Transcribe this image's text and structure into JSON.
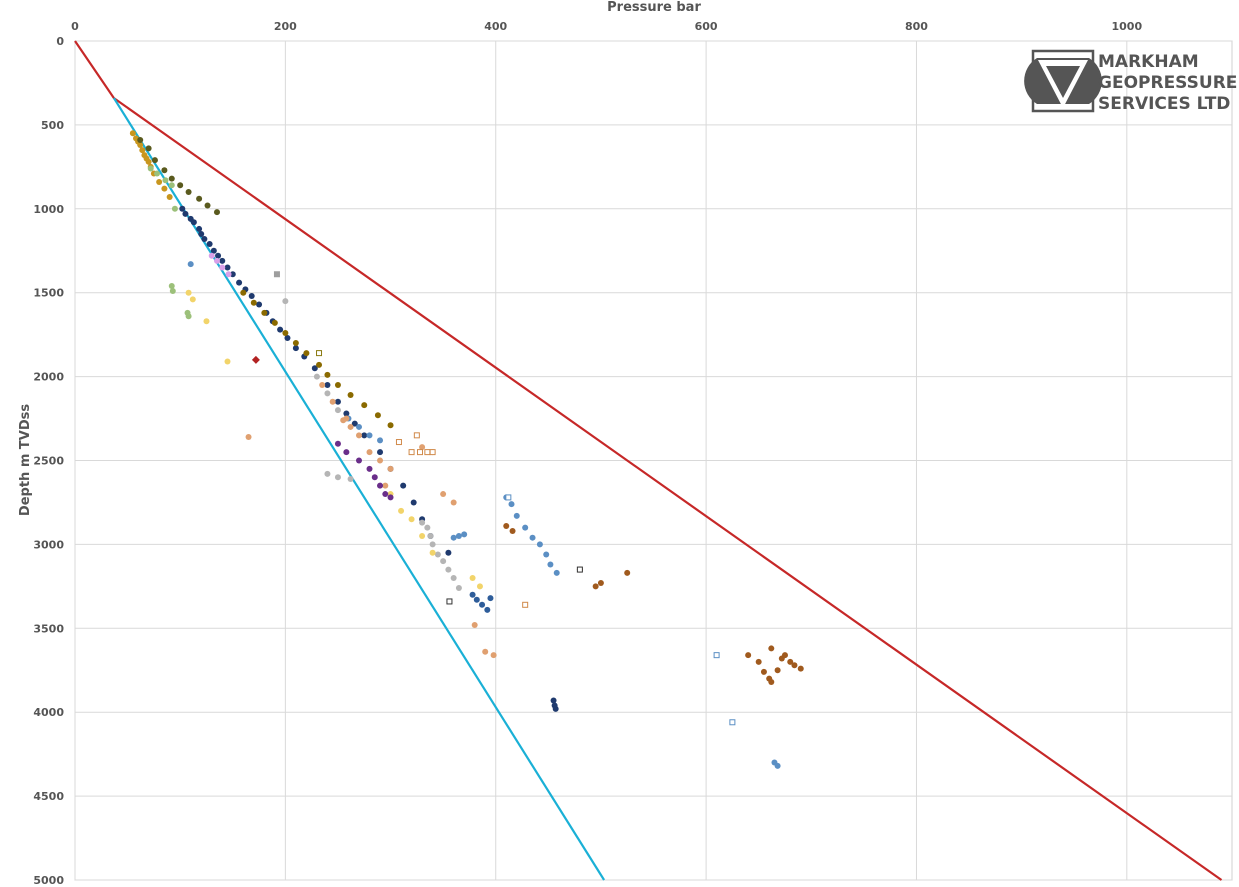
{
  "chart_data": {
    "type": "scatter",
    "title": "",
    "xlabel": "Pressure bar",
    "ylabel": "Depth m TVDss",
    "xlim": [
      0,
      1100
    ],
    "ylim": [
      5000,
      0
    ],
    "x_axis_position": "top",
    "y_axis_inverted": true,
    "x_ticks": [
      "0",
      "200",
      "400",
      "600",
      "800",
      "1000"
    ],
    "y_ticks": [
      "0",
      "500",
      "1000",
      "1500",
      "2000",
      "2500",
      "3000",
      "3500",
      "4000",
      "4500",
      "5000"
    ],
    "grid": true,
    "legend": "none",
    "lines": [
      {
        "color": "#c62828",
        "points": [
          [
            0,
            0
          ],
          [
            37,
            340
          ],
          [
            1090,
            5000
          ]
        ]
      },
      {
        "color": "#1ab0d6",
        "points": [
          [
            37,
            340
          ],
          [
            503,
            5000
          ]
        ]
      }
    ],
    "series": [
      {
        "color": "#c8961e",
        "marker": "circle",
        "points": [
          [
            55,
            550
          ],
          [
            58,
            580
          ],
          [
            60,
            600
          ],
          [
            62,
            620
          ],
          [
            64,
            650
          ],
          [
            66,
            680
          ],
          [
            68,
            700
          ],
          [
            70,
            720
          ],
          [
            72,
            750
          ],
          [
            75,
            790
          ],
          [
            80,
            840
          ],
          [
            85,
            880
          ],
          [
            90,
            930
          ]
        ]
      },
      {
        "color": "#9cc07a",
        "marker": "circle",
        "points": [
          [
            72,
            760
          ],
          [
            78,
            790
          ],
          [
            86,
            830
          ],
          [
            92,
            860
          ],
          [
            95,
            1000
          ],
          [
            92,
            1460
          ],
          [
            93,
            1490
          ],
          [
            107,
            1620
          ],
          [
            108,
            1640
          ]
        ]
      },
      {
        "color": "#5a5a1e",
        "marker": "circle",
        "points": [
          [
            62,
            590
          ],
          [
            70,
            640
          ],
          [
            76,
            710
          ],
          [
            85,
            770
          ],
          [
            92,
            820
          ],
          [
            100,
            860
          ],
          [
            108,
            900
          ],
          [
            118,
            940
          ],
          [
            126,
            980
          ],
          [
            135,
            1020
          ]
        ]
      },
      {
        "color": "#1f3a6e",
        "marker": "circle",
        "points": [
          [
            102,
            1000
          ],
          [
            105,
            1030
          ],
          [
            110,
            1060
          ],
          [
            113,
            1080
          ],
          [
            118,
            1120
          ],
          [
            120,
            1150
          ],
          [
            123,
            1180
          ],
          [
            128,
            1210
          ],
          [
            132,
            1250
          ],
          [
            136,
            1280
          ],
          [
            140,
            1310
          ],
          [
            145,
            1350
          ],
          [
            150,
            1390
          ],
          [
            156,
            1440
          ],
          [
            162,
            1480
          ],
          [
            168,
            1520
          ],
          [
            175,
            1570
          ],
          [
            182,
            1620
          ],
          [
            188,
            1670
          ],
          [
            195,
            1720
          ],
          [
            202,
            1770
          ],
          [
            210,
            1830
          ],
          [
            218,
            1880
          ],
          [
            228,
            1950
          ],
          [
            240,
            2050
          ],
          [
            250,
            2150
          ],
          [
            258,
            2220
          ],
          [
            266,
            2280
          ],
          [
            275,
            2350
          ],
          [
            290,
            2450
          ],
          [
            300,
            2550
          ],
          [
            312,
            2650
          ],
          [
            322,
            2750
          ],
          [
            330,
            2850
          ],
          [
            338,
            2950
          ],
          [
            355,
            3050
          ],
          [
            455,
            3930
          ],
          [
            456,
            3960
          ],
          [
            457,
            3980
          ]
        ]
      },
      {
        "color": "#8a6a00",
        "marker": "circle",
        "points": [
          [
            160,
            1500
          ],
          [
            170,
            1560
          ],
          [
            180,
            1620
          ],
          [
            190,
            1680
          ],
          [
            200,
            1740
          ],
          [
            210,
            1800
          ],
          [
            220,
            1860
          ],
          [
            232,
            1930
          ],
          [
            240,
            1990
          ],
          [
            250,
            2050
          ],
          [
            262,
            2110
          ],
          [
            275,
            2170
          ],
          [
            288,
            2230
          ],
          [
            300,
            2290
          ]
        ]
      },
      {
        "color": "#d9a0e8",
        "marker": "circle",
        "points": [
          [
            130,
            1280
          ],
          [
            135,
            1310
          ],
          [
            140,
            1350
          ],
          [
            146,
            1390
          ]
        ]
      },
      {
        "color": "#5b8fc4",
        "marker": "circle",
        "points": [
          [
            110,
            1330
          ],
          [
            260,
            2250
          ],
          [
            270,
            2300
          ],
          [
            280,
            2350
          ],
          [
            290,
            2380
          ],
          [
            410,
            2720
          ],
          [
            415,
            2760
          ],
          [
            420,
            2830
          ],
          [
            428,
            2900
          ],
          [
            435,
            2960
          ],
          [
            442,
            3000
          ],
          [
            448,
            3060
          ],
          [
            452,
            3120
          ],
          [
            458,
            3170
          ],
          [
            360,
            2960
          ],
          [
            365,
            2950
          ],
          [
            370,
            2940
          ],
          [
            665,
            4300
          ],
          [
            668,
            4320
          ]
        ]
      },
      {
        "color": "#2e5d9a",
        "marker": "circle",
        "points": [
          [
            378,
            3300
          ],
          [
            382,
            3330
          ],
          [
            387,
            3360
          ],
          [
            392,
            3390
          ],
          [
            395,
            3320
          ]
        ]
      },
      {
        "color": "#b5b5b5",
        "marker": "circle",
        "points": [
          [
            200,
            1550
          ],
          [
            230,
            2000
          ],
          [
            240,
            2100
          ],
          [
            250,
            2200
          ],
          [
            240,
            2580
          ],
          [
            250,
            2600
          ],
          [
            262,
            2610
          ],
          [
            330,
            2870
          ],
          [
            335,
            2900
          ],
          [
            338,
            2950
          ],
          [
            340,
            3000
          ],
          [
            345,
            3060
          ],
          [
            350,
            3100
          ],
          [
            355,
            3150
          ],
          [
            360,
            3200
          ],
          [
            365,
            3260
          ]
        ]
      },
      {
        "color": "#f2d46a",
        "marker": "circle",
        "points": [
          [
            108,
            1500
          ],
          [
            112,
            1540
          ],
          [
            125,
            1670
          ],
          [
            145,
            1910
          ],
          [
            300,
            2700
          ],
          [
            310,
            2800
          ],
          [
            320,
            2850
          ],
          [
            330,
            2950
          ],
          [
            340,
            3050
          ],
          [
            378,
            3200
          ],
          [
            385,
            3250
          ]
        ]
      },
      {
        "color": "#e0a070",
        "marker": "circle",
        "points": [
          [
            165,
            2360
          ],
          [
            235,
            2050
          ],
          [
            245,
            2150
          ],
          [
            258,
            2250
          ],
          [
            270,
            2350
          ],
          [
            280,
            2450
          ],
          [
            290,
            2500
          ],
          [
            300,
            2550
          ],
          [
            255,
            2260
          ],
          [
            262,
            2300
          ],
          [
            295,
            2650
          ],
          [
            330,
            2420
          ],
          [
            340,
            2450
          ],
          [
            350,
            2700
          ],
          [
            360,
            2750
          ],
          [
            380,
            3480
          ],
          [
            390,
            3640
          ],
          [
            398,
            3660
          ]
        ]
      },
      {
        "color": "#a05a1e",
        "marker": "circle",
        "points": [
          [
            410,
            2890
          ],
          [
            416,
            2920
          ],
          [
            480,
            3150
          ],
          [
            495,
            3250
          ],
          [
            500,
            3230
          ],
          [
            525,
            3170
          ],
          [
            640,
            3660
          ],
          [
            650,
            3700
          ],
          [
            655,
            3760
          ],
          [
            662,
            3620
          ],
          [
            668,
            3750
          ],
          [
            672,
            3680
          ],
          [
            675,
            3660
          ],
          [
            680,
            3700
          ],
          [
            684,
            3720
          ],
          [
            690,
            3740
          ],
          [
            660,
            3800
          ],
          [
            662,
            3820
          ]
        ]
      },
      {
        "color": "#6a2e8a",
        "marker": "circle",
        "points": [
          [
            250,
            2400
          ],
          [
            258,
            2450
          ],
          [
            270,
            2500
          ],
          [
            280,
            2550
          ],
          [
            285,
            2600
          ],
          [
            290,
            2650
          ],
          [
            295,
            2700
          ],
          [
            300,
            2720
          ]
        ]
      },
      {
        "color": "#b22222",
        "marker": "diamond",
        "points": [
          [
            172,
            1900
          ]
        ]
      },
      {
        "color": "#9e9e9e",
        "marker": "square",
        "points": [
          [
            192,
            1390
          ]
        ]
      },
      {
        "color": "#8a7a10",
        "marker": "square-open",
        "points": [
          [
            232,
            1860
          ]
        ]
      },
      {
        "color": "#d08a4a",
        "marker": "square-open",
        "points": [
          [
            308,
            2390
          ],
          [
            320,
            2450
          ],
          [
            328,
            2450
          ],
          [
            335,
            2450
          ],
          [
            340,
            2450
          ],
          [
            325,
            2350
          ],
          [
            428,
            3360
          ]
        ]
      },
      {
        "color": "#333333",
        "marker": "square-open",
        "points": [
          [
            356,
            3340
          ],
          [
            480,
            3150
          ]
        ]
      },
      {
        "color": "#5b8fc4",
        "marker": "square-open",
        "points": [
          [
            610,
            3660
          ],
          [
            625,
            4060
          ],
          [
            412,
            2720
          ]
        ]
      }
    ]
  },
  "logo": {
    "line1": "MARKHAM",
    "line2": "GEOPRESSURE",
    "line3": "SERVICES LTD"
  }
}
